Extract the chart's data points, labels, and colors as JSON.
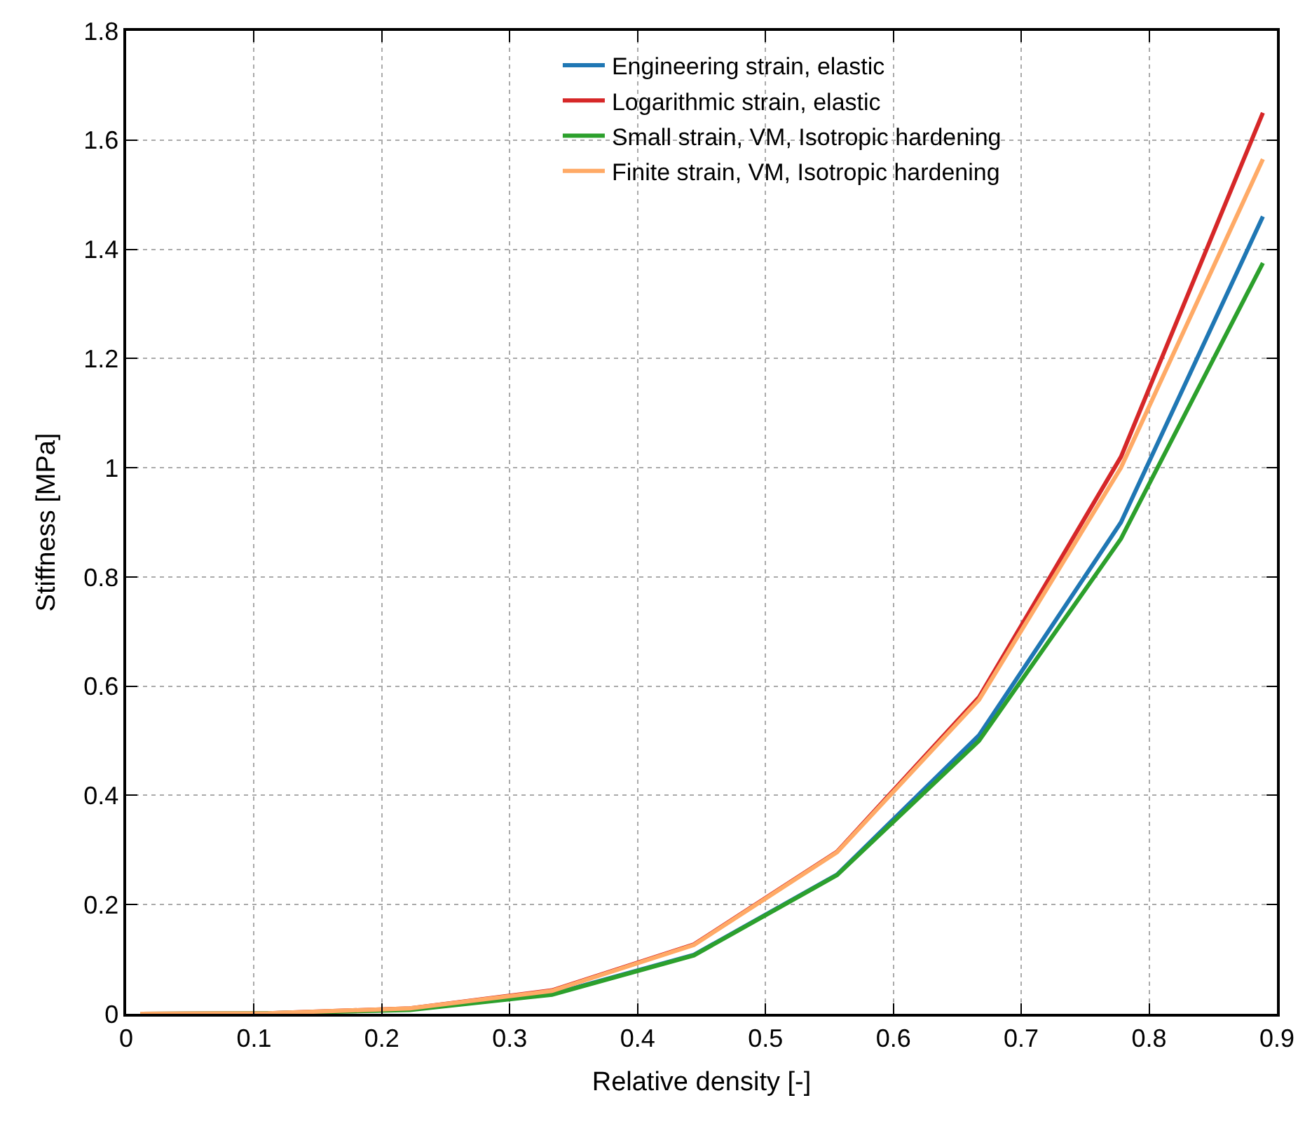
{
  "chart_data": {
    "type": "line",
    "xlabel": "Relative density [-]",
    "ylabel": "Stiffness [MPa]",
    "x": [
      0.011,
      0.111,
      0.222,
      0.333,
      0.444,
      0.556,
      0.667,
      0.778,
      0.889
    ],
    "series": [
      {
        "name": "Engineering strain, elastic",
        "color": "#1f77b4",
        "values": [
          null,
          null,
          0.008,
          0.036,
          0.108,
          0.255,
          0.51,
          0.9,
          1.46
        ]
      },
      {
        "name": "Logarithmic strain, elastic",
        "color": "#d62728",
        "values": [
          0,
          0.001,
          0.01,
          0.043,
          0.127,
          0.297,
          0.58,
          1.02,
          1.65
        ]
      },
      {
        "name": "Small strain, VM, Isotropic hardening",
        "color": "#2ca02c",
        "values": [
          0,
          0.001,
          0.007,
          0.035,
          0.107,
          0.254,
          0.5,
          0.87,
          1.375
        ]
      },
      {
        "name": "Finite strain, VM, Isotropic hardening",
        "color": "#ffaa66",
        "values": [
          0,
          0.001,
          0.01,
          0.042,
          0.126,
          0.296,
          0.575,
          1.0,
          1.565
        ]
      }
    ],
    "xlim": [
      0,
      0.9
    ],
    "xticks": [
      0,
      0.1,
      0.2,
      0.3,
      0.4,
      0.5,
      0.6,
      0.7,
      0.8,
      0.9
    ],
    "ylim": [
      0,
      1.8
    ],
    "yticks": [
      0,
      0.2,
      0.4,
      0.6,
      0.8,
      1,
      1.2,
      1.4,
      1.6,
      1.8
    ],
    "grid": true,
    "legend": "top",
    "marker": "none",
    "line_style": "solid"
  }
}
